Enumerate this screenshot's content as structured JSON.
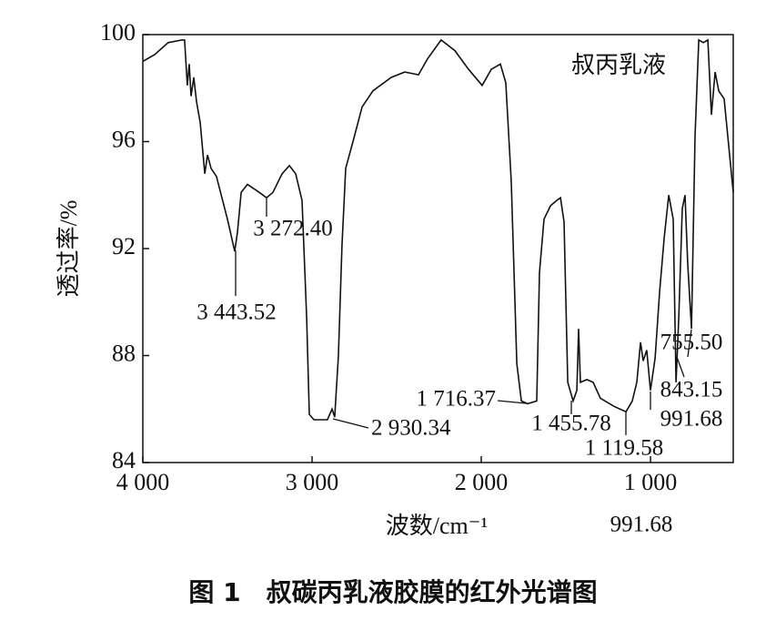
{
  "chart_data": {
    "type": "line",
    "caption": "图 1　叔碳丙乳液胶膜的红外光谱图",
    "xlabel": "波数/cm⁻¹",
    "ylabel": "透过率/%",
    "xlim": [
      4000,
      511
    ],
    "ylim": [
      84,
      100
    ],
    "xticks": [
      {
        "value": 4000,
        "label": "4 000"
      },
      {
        "value": 3000,
        "label": "3 000"
      },
      {
        "value": 2000,
        "label": "2 000"
      },
      {
        "value": 1000,
        "label": "1 000"
      }
    ],
    "yticks": [
      84,
      88,
      92,
      96,
      100
    ],
    "series": [
      {
        "name": "叔丙乳液",
        "color": "#111111",
        "x": [
          4000,
          3930,
          3850,
          3769,
          3753,
          3737,
          3726,
          3715,
          3699,
          3683,
          3661,
          3634,
          3618,
          3597,
          3565,
          3500,
          3457,
          3441,
          3419,
          3382,
          3312,
          3269,
          3231,
          3177,
          3134,
          3097,
          3059,
          3032,
          3016,
          2989,
          2909,
          2882,
          2866,
          2844,
          2823,
          2801,
          2758,
          2704,
          2640,
          2532,
          2452,
          2371,
          2317,
          2237,
          2156,
          2075,
          1995,
          1941,
          1887,
          1855,
          1823,
          1790,
          1763,
          1726,
          1672,
          1656,
          1629,
          1591,
          1554,
          1532,
          1511,
          1489,
          1457,
          1435,
          1425,
          1414,
          1376,
          1339,
          1296,
          1215,
          1145,
          1108,
          1081,
          1059,
          1043,
          1022,
          1000,
          973,
          946,
          919,
          892,
          866,
          849,
          833,
          812,
          796,
          780,
          758,
          737,
          715,
          688,
          661,
          640,
          618,
          597,
          565,
          511
        ],
        "values": [
          99.0,
          99.25,
          99.7,
          99.8,
          99.8,
          98.1,
          98.9,
          97.7,
          98.4,
          97.5,
          96.7,
          94.8,
          95.5,
          95.0,
          94.7,
          93.1,
          91.9,
          92.6,
          94.1,
          94.4,
          94.1,
          93.9,
          94.1,
          94.8,
          95.1,
          94.8,
          93.8,
          89.4,
          85.8,
          85.6,
          85.6,
          86.0,
          85.7,
          88.0,
          92.1,
          95.0,
          96.0,
          97.3,
          97.9,
          98.4,
          98.6,
          98.5,
          99.1,
          99.8,
          99.4,
          98.7,
          98.1,
          98.7,
          98.9,
          98.2,
          94.5,
          87.7,
          86.3,
          86.2,
          86.3,
          91.1,
          93.1,
          93.6,
          93.8,
          93.9,
          93.0,
          87.0,
          86.3,
          86.7,
          89.0,
          87.0,
          87.1,
          87.0,
          86.4,
          86.1,
          85.9,
          86.3,
          87.0,
          88.5,
          87.8,
          88.2,
          86.7,
          87.9,
          90.4,
          92.4,
          94.0,
          93.1,
          87.0,
          89.4,
          93.5,
          94.0,
          91.4,
          89.0,
          96.2,
          99.8,
          99.7,
          99.8,
          97.0,
          98.6,
          97.9,
          97.6,
          94.1
        ]
      }
    ],
    "annotations": [
      "3 272.40",
      "3 443.52",
      "2 930.34",
      "1 716.37",
      "1 455.78",
      "1 119.58",
      "991.68",
      "843.15",
      "755.50",
      "991.68"
    ]
  }
}
